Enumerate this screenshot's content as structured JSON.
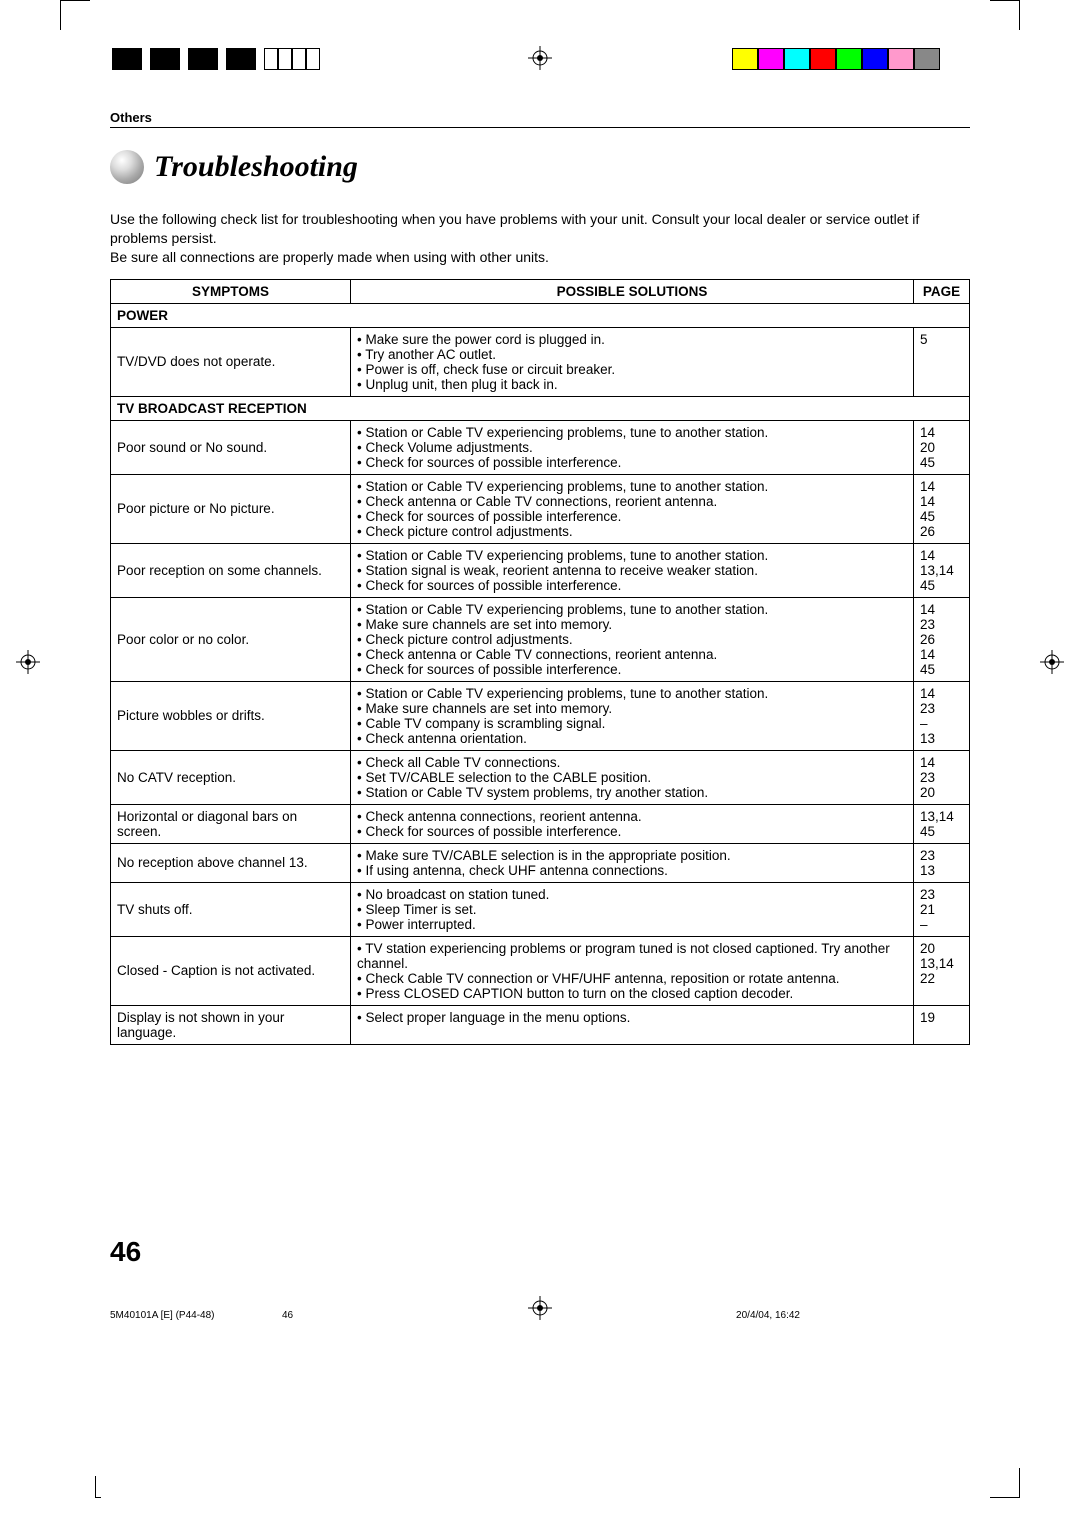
{
  "marks": {
    "color_swatches": [
      "#ffff00",
      "#ff00ff",
      "#00ffff",
      "#ff0000",
      "#00ff00",
      "#0000ff",
      "#ff99cc",
      "#888888"
    ]
  },
  "header": {
    "section": "Others",
    "title": "Troubleshooting"
  },
  "intro": {
    "p1": "Use the following check list for troubleshooting when you have problems with your unit. Consult your local dealer or service outlet if problems persist.",
    "p2": "Be sure all connections are properly made when using with other units."
  },
  "table": {
    "headers": {
      "symptoms": "SYMPTOMS",
      "solutions": "POSSIBLE SOLUTIONS",
      "page": "PAGE"
    },
    "sections": [
      {
        "label": "POWER",
        "rows": [
          {
            "symptom": "TV/DVD does not operate.",
            "solutions": [
              "• Make sure the power cord is plugged in.",
              "• Try another AC outlet.",
              "• Power is off, check fuse or circuit breaker.",
              "• Unplug unit, then plug it back in."
            ],
            "pages": [
              "",
              "5",
              "",
              ""
            ]
          }
        ]
      },
      {
        "label": "TV BROADCAST RECEPTION",
        "rows": [
          {
            "symptom": "Poor sound or No sound.",
            "solutions": [
              "• Station or Cable TV experiencing problems, tune to another station.",
              "• Check Volume adjustments.",
              "• Check for sources of possible interference."
            ],
            "pages": [
              "14",
              "20",
              "45"
            ]
          },
          {
            "symptom": "Poor picture or No picture.",
            "solutions": [
              "• Station or Cable TV experiencing problems, tune to another station.",
              "• Check antenna or Cable TV connections, reorient antenna.",
              "• Check for sources of possible interference.",
              "• Check picture control adjustments."
            ],
            "pages": [
              "14",
              "14",
              "45",
              "26"
            ]
          },
          {
            "symptom": "Poor reception on some channels.",
            "solutions": [
              "• Station or Cable TV experiencing problems, tune to another station.",
              "• Station signal is weak, reorient antenna to receive weaker station.",
              "• Check for sources of possible interference."
            ],
            "pages": [
              "14",
              "13,14",
              "45"
            ]
          },
          {
            "symptom": "Poor color or no color.",
            "solutions": [
              "• Station or Cable TV experiencing problems, tune to another station.",
              "• Make sure channels are set into memory.",
              "• Check picture control adjustments.",
              "• Check antenna or Cable TV connections, reorient antenna.",
              "• Check for sources of possible interference."
            ],
            "pages": [
              "14",
              "23",
              "26",
              "14",
              "45"
            ]
          },
          {
            "symptom": "Picture wobbles or drifts.",
            "solutions": [
              "• Station or Cable TV experiencing problems, tune to another station.",
              "• Make sure channels are set into memory.",
              "• Cable TV company is scrambling signal.",
              "• Check antenna orientation."
            ],
            "pages": [
              "14",
              "23",
              "–",
              "13"
            ]
          },
          {
            "symptom": "No CATV reception.",
            "solutions": [
              "• Check all Cable TV connections.",
              "• Set TV/CABLE selection to the CABLE position.",
              "• Station or Cable TV system problems, try another station."
            ],
            "pages": [
              "14",
              "23",
              "20"
            ]
          },
          {
            "symptom": "Horizontal or diagonal bars on screen.",
            "solutions": [
              "• Check antenna connections, reorient antenna.",
              "• Check for sources of possible interference."
            ],
            "pages": [
              "13,14",
              "45"
            ]
          },
          {
            "symptom": "No reception above channel 13.",
            "solutions": [
              "• Make sure TV/CABLE selection is in the appropriate position.",
              "• If using antenna, check UHF antenna connections."
            ],
            "pages": [
              "23",
              "13"
            ]
          },
          {
            "symptom": "TV shuts off.",
            "solutions": [
              "• No broadcast on station tuned.",
              "• Sleep Timer is set.",
              "• Power interrupted."
            ],
            "pages": [
              "23",
              "21",
              "–"
            ]
          },
          {
            "symptom": "Closed - Caption is not activated.",
            "solutions": [
              "• TV station experiencing problems or program tuned is not closed captioned. Try another channel.",
              "• Check Cable TV connection or VHF/UHF antenna, reposition or rotate antenna.",
              "• Press CLOSED CAPTION button to turn on the closed caption decoder."
            ],
            "pages": [
              "20",
              "13,14",
              "22"
            ]
          },
          {
            "symptom": "Display is not shown in your language.",
            "solutions": [
              "• Select proper language in the menu options."
            ],
            "pages": [
              "19"
            ]
          }
        ]
      }
    ]
  },
  "footer": {
    "pagenum": "46",
    "doc_id": "5M40101A [E] (P44-48)",
    "sheet_page": "46",
    "timestamp": "20/4/04, 16:42"
  }
}
